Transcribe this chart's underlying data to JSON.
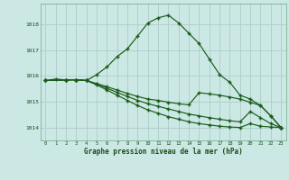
{
  "background_color": "#cce8e4",
  "grid_color": "#b0d0cc",
  "line_color": "#1a5c1a",
  "xlabel": "Graphe pression niveau de la mer (hPa)",
  "xlim": [
    -0.5,
    23.5
  ],
  "ylim": [
    1013.5,
    1018.8
  ],
  "yticks": [
    1014,
    1015,
    1016,
    1017,
    1018
  ],
  "xticks": [
    0,
    1,
    2,
    3,
    4,
    5,
    6,
    7,
    8,
    9,
    10,
    11,
    12,
    13,
    14,
    15,
    16,
    17,
    18,
    19,
    20,
    21,
    22,
    23
  ],
  "line1_x": [
    0,
    1,
    2,
    3,
    4,
    5,
    6,
    7,
    8,
    9,
    10,
    11,
    12,
    13,
    14,
    15,
    16,
    17,
    18,
    19,
    20,
    21,
    22,
    23
  ],
  "line1_y": [
    1015.82,
    1015.88,
    1015.84,
    1015.85,
    1015.82,
    1016.05,
    1016.35,
    1016.75,
    1017.05,
    1017.55,
    1018.05,
    1018.25,
    1018.35,
    1018.05,
    1017.65,
    1017.25,
    1016.65,
    1016.05,
    1015.75,
    1015.25,
    1015.1,
    1014.85,
    1014.45,
    1014.0
  ],
  "line2_x": [
    0,
    2,
    3,
    4,
    5,
    6,
    7,
    8,
    9,
    10,
    11,
    12,
    13,
    14,
    15,
    16,
    17,
    18,
    19,
    20,
    21,
    22,
    23
  ],
  "line2_y": [
    1015.82,
    1015.84,
    1015.85,
    1015.82,
    1015.7,
    1015.58,
    1015.45,
    1015.32,
    1015.2,
    1015.1,
    1015.05,
    1014.98,
    1014.92,
    1014.88,
    1015.35,
    1015.3,
    1015.25,
    1015.18,
    1015.1,
    1014.98,
    1014.85,
    1014.45,
    1014.0
  ],
  "line3_x": [
    0,
    2,
    3,
    4,
    5,
    6,
    7,
    8,
    9,
    10,
    11,
    12,
    13,
    14,
    15,
    16,
    17,
    18,
    19,
    20,
    21,
    22,
    23
  ],
  "line3_y": [
    1015.82,
    1015.84,
    1015.85,
    1015.82,
    1015.68,
    1015.52,
    1015.36,
    1015.2,
    1015.05,
    1014.92,
    1014.82,
    1014.72,
    1014.62,
    1014.52,
    1014.45,
    1014.38,
    1014.32,
    1014.26,
    1014.22,
    1014.62,
    1014.38,
    1014.15,
    1014.0
  ],
  "line4_x": [
    0,
    2,
    3,
    4,
    5,
    6,
    7,
    8,
    9,
    10,
    11,
    12,
    13,
    14,
    15,
    16,
    17,
    18,
    19,
    20,
    21,
    22,
    23
  ],
  "line4_y": [
    1015.82,
    1015.84,
    1015.85,
    1015.82,
    1015.65,
    1015.45,
    1015.25,
    1015.05,
    1014.85,
    1014.68,
    1014.55,
    1014.42,
    1014.32,
    1014.22,
    1014.15,
    1014.1,
    1014.05,
    1014.02,
    1014.0,
    1014.15,
    1014.05,
    1014.02,
    1014.0
  ]
}
